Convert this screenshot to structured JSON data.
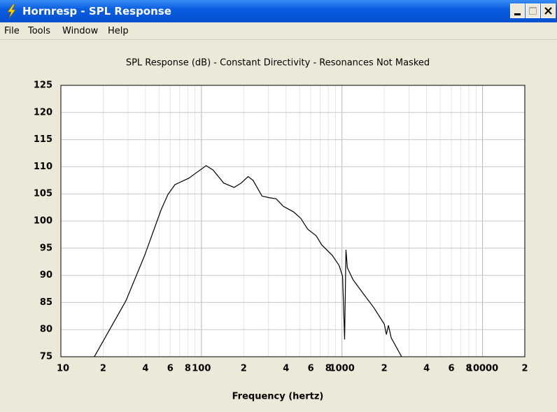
{
  "window": {
    "title": "Hornresp - SPL Response",
    "menu": [
      "File",
      "Tools",
      "Window",
      "Help"
    ]
  },
  "chart_data": {
    "type": "line",
    "title": "SPL Response (dB) - Constant Directivity - Resonances Not Masked",
    "x_label": "Frequency (hertz)",
    "x_log": true,
    "grid": true,
    "xlim": [
      10,
      20000
    ],
    "ylim": [
      75,
      125
    ],
    "xticks": [
      10,
      {
        "value": 20,
        "label": "2"
      },
      {
        "value": 40,
        "label": "4"
      },
      {
        "value": 60,
        "label": "6"
      },
      {
        "value": 80,
        "label": "8"
      },
      100,
      {
        "value": 200,
        "label": "2"
      },
      {
        "value": 400,
        "label": "4"
      },
      {
        "value": 600,
        "label": "6"
      },
      {
        "value": 800,
        "label": "8"
      },
      1000,
      {
        "value": 2000,
        "label": "2"
      },
      {
        "value": 4000,
        "label": "4"
      },
      {
        "value": 6000,
        "label": "6"
      },
      {
        "value": 8000,
        "label": "8"
      },
      10000,
      {
        "value": 20000,
        "label": "2"
      }
    ],
    "xminor_ticks": [
      30,
      50,
      70,
      90,
      300,
      500,
      700,
      900,
      3000,
      5000,
      7000,
      9000
    ],
    "yticks": [
      75,
      80,
      85,
      90,
      95,
      100,
      105,
      110,
      115,
      120,
      125
    ],
    "series": [
      {
        "color": "#000000",
        "x": [
          17.3,
          29,
          39.5,
          51.5,
          57.8,
          64.8,
          81.4,
          91,
          108,
          121,
          144,
          171,
          192,
          215,
          233,
          270,
          303,
          340,
          383,
          452,
          509,
          570,
          655,
          718,
          852,
          955,
          1010,
          1045,
          1068,
          1093,
          1199,
          1420,
          1690,
          2000,
          2070,
          2140,
          2240,
          2660
        ],
        "values": [
          75,
          85.3,
          93.7,
          102,
          104.9,
          106.7,
          107.9,
          108.8,
          110.2,
          109.4,
          107,
          106.2,
          107,
          108.2,
          107.5,
          104.6,
          104.3,
          104.1,
          102.7,
          101.7,
          100.5,
          98.5,
          97.3,
          95.6,
          93.7,
          91.8,
          89.8,
          78.2,
          94.7,
          91.4,
          89.2,
          86.6,
          84,
          81,
          79.1,
          80.8,
          78.5,
          75
        ]
      }
    ]
  }
}
